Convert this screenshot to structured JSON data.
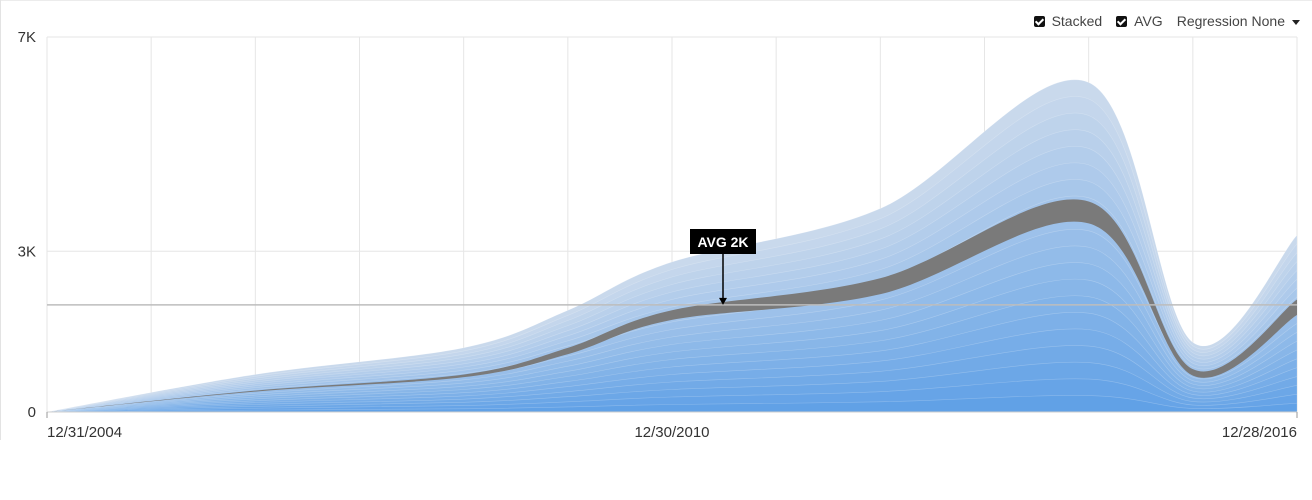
{
  "toolbar": {
    "stacked_label": "Stacked",
    "avg_label": "AVG",
    "regression_label": "Regression",
    "regression_value": "None"
  },
  "colors": {
    "band_top": "#c9d9ec",
    "band_bottom": "#5c9ee6",
    "avg_band": "#7a7a7a",
    "avg_line": "#bdbdbd",
    "grid": "#e6e6e6",
    "callout_bg": "#000000"
  },
  "chart_data": {
    "type": "area",
    "stacked": true,
    "x_ticks": [
      "12/31/2004",
      "12/30/2010",
      "12/28/2016"
    ],
    "y_ticks": [
      "0",
      "3K",
      "7K"
    ],
    "y_tick_values": [
      0,
      3000,
      7000
    ],
    "ylim": [
      0,
      7000
    ],
    "avg_value": 2000,
    "avg_annotation": "AVG 2K",
    "x": [
      "2004-12-31",
      "2006-12-31",
      "2008-12-31",
      "2009-12-31",
      "2010-12-30",
      "2012-12-30",
      "2014-12-29",
      "2015-12-29",
      "2016-12-28"
    ],
    "total": [
      0,
      700,
      1200,
      1900,
      2800,
      3800,
      6150,
      1300,
      3300
    ],
    "avg_band_top": [
      0,
      400,
      700,
      1200,
      1900,
      2500,
      3930,
      800,
      2100
    ],
    "avg_band_bottom": [
      0,
      380,
      650,
      1080,
      1720,
      2200,
      3520,
      680,
      1810
    ],
    "grid": true
  }
}
